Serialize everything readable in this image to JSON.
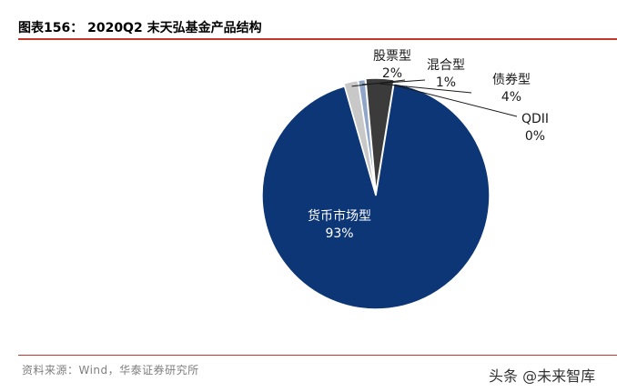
{
  "header": {
    "title": "图表156： 2020Q2 末天弘基金产品结构"
  },
  "footer": {
    "source": "资料来源：Wind，华泰证券研究所",
    "watermark": "头条 @未来智库"
  },
  "chart_data": {
    "type": "pie",
    "title": "图表156： 2020Q2 末天弘基金产品结构",
    "categories": [
      "货币市场型",
      "股票型",
      "混合型",
      "债券型",
      "QDII"
    ],
    "values": [
      93,
      2,
      1,
      4,
      0
    ],
    "value_labels": [
      "93%",
      "2%",
      "1%",
      "4%",
      "0%"
    ],
    "colors": [
      "#0d3677",
      "#c8c8c8",
      "#8fa6c8",
      "#3b3b3b",
      "#1a1a1a"
    ]
  }
}
